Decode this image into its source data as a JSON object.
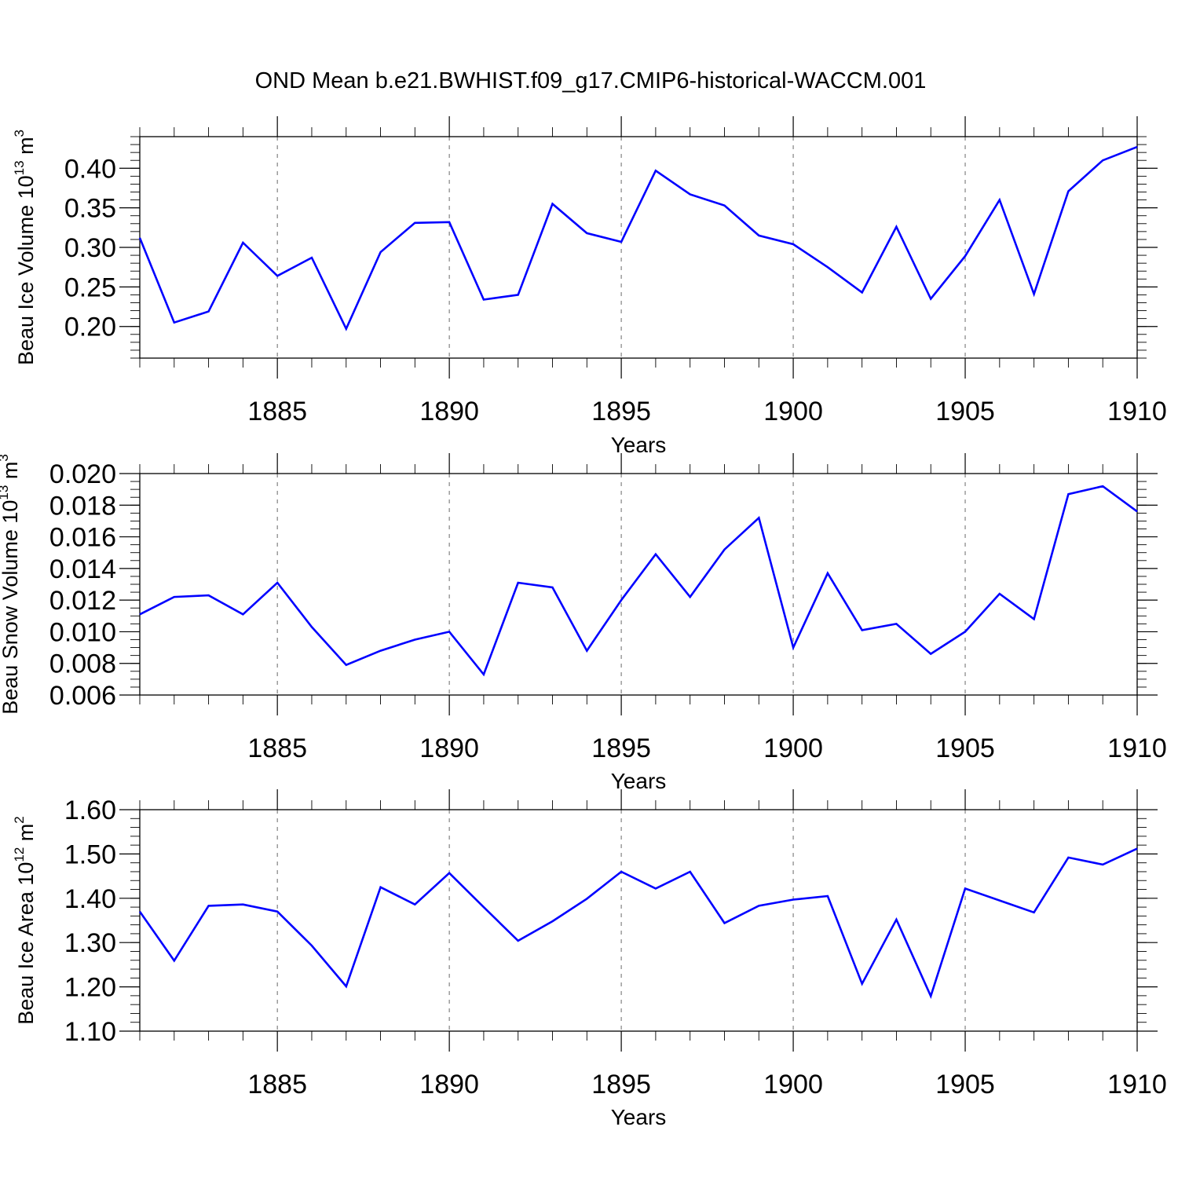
{
  "chart_data": {
    "title": "OND Mean b.e21.BWHIST.f09_g17.CMIP6-historical-WACCM.001",
    "panels": [
      {
        "type": "line",
        "ylabel": {
          "base": "Beau Ice Volume 10",
          "exp": "13",
          "unit": " m",
          "unit_exp": "3"
        },
        "xlabel": "Years",
        "xlim": [
          1881,
          1910
        ],
        "x_ticks": [
          1885,
          1890,
          1895,
          1900,
          1905,
          1910
        ],
        "ylim": [
          0.16,
          0.44
        ],
        "y_ticks": [
          0.2,
          0.25,
          0.3,
          0.35,
          0.4
        ],
        "y_tick_labels": [
          "0.20",
          "0.25",
          "0.30",
          "0.35",
          "0.40"
        ],
        "y_minor_step": 0.01,
        "vertical_grid": "dashed at major x ticks",
        "color": "#0000ff",
        "x": [
          1881,
          1882,
          1883,
          1884,
          1885,
          1886,
          1887,
          1888,
          1889,
          1890,
          1891,
          1892,
          1893,
          1894,
          1895,
          1896,
          1897,
          1898,
          1899,
          1900,
          1901,
          1902,
          1903,
          1904,
          1905,
          1906,
          1907,
          1908,
          1909,
          1910
        ],
        "y": [
          0.312,
          0.205,
          0.219,
          0.306,
          0.264,
          0.287,
          0.197,
          0.294,
          0.331,
          0.332,
          0.234,
          0.24,
          0.355,
          0.318,
          0.307,
          0.397,
          0.367,
          0.353,
          0.315,
          0.304,
          0.275,
          0.243,
          0.326,
          0.235,
          0.289,
          0.36,
          0.241,
          0.371,
          0.41,
          0.427
        ]
      },
      {
        "type": "line",
        "ylabel": {
          "base": "Beau Snow Volume 10",
          "exp": "13",
          "unit": " m",
          "unit_exp": "3"
        },
        "xlabel": "Years",
        "xlim": [
          1881,
          1910
        ],
        "x_ticks": [
          1885,
          1890,
          1895,
          1900,
          1905,
          1910
        ],
        "ylim": [
          0.006,
          0.02
        ],
        "y_ticks": [
          0.006,
          0.008,
          0.01,
          0.012,
          0.014,
          0.016,
          0.018,
          0.02
        ],
        "y_tick_labels": [
          "0.006",
          "0.008",
          "0.010",
          "0.012",
          "0.014",
          "0.016",
          "0.018",
          "0.020"
        ],
        "y_minor_step": 0.0005,
        "vertical_grid": "dashed at major x ticks",
        "color": "#0000ff",
        "x": [
          1881,
          1882,
          1883,
          1884,
          1885,
          1886,
          1887,
          1888,
          1889,
          1890,
          1891,
          1892,
          1893,
          1894,
          1895,
          1896,
          1897,
          1898,
          1899,
          1900,
          1901,
          1902,
          1903,
          1904,
          1905,
          1906,
          1907,
          1908,
          1909,
          1910
        ],
        "y": [
          0.0111,
          0.0122,
          0.0123,
          0.0111,
          0.0131,
          0.0103,
          0.0079,
          0.0088,
          0.0095,
          0.01,
          0.0073,
          0.0131,
          0.0128,
          0.0088,
          0.012,
          0.0149,
          0.0122,
          0.0152,
          0.0172,
          0.009,
          0.0137,
          0.0101,
          0.0105,
          0.0086,
          0.01,
          0.0124,
          0.0108,
          0.0187,
          0.0192,
          0.0176
        ]
      },
      {
        "type": "line",
        "ylabel": {
          "base": "Beau Ice Area 10",
          "exp": "12",
          "unit": " m",
          "unit_exp": "2"
        },
        "xlabel": "Years",
        "xlim": [
          1881,
          1910
        ],
        "x_ticks": [
          1885,
          1890,
          1895,
          1900,
          1905,
          1910
        ],
        "ylim": [
          1.1,
          1.6
        ],
        "y_ticks": [
          1.1,
          1.2,
          1.3,
          1.4,
          1.5,
          1.6
        ],
        "y_tick_labels": [
          "1.10",
          "1.20",
          "1.30",
          "1.40",
          "1.50",
          "1.60"
        ],
        "y_minor_step": 0.02,
        "vertical_grid": "dashed at major x ticks",
        "color": "#0000ff",
        "x": [
          1881,
          1882,
          1883,
          1884,
          1885,
          1886,
          1887,
          1888,
          1889,
          1890,
          1891,
          1892,
          1893,
          1894,
          1895,
          1896,
          1897,
          1898,
          1899,
          1900,
          1901,
          1902,
          1903,
          1904,
          1905,
          1906,
          1907,
          1908,
          1909,
          1910
        ],
        "y": [
          1.37,
          1.259,
          1.383,
          1.386,
          1.37,
          1.293,
          1.201,
          1.425,
          1.386,
          1.457,
          1.38,
          1.304,
          1.348,
          1.399,
          1.46,
          1.422,
          1.46,
          1.344,
          1.383,
          1.397,
          1.405,
          1.207,
          1.352,
          1.179,
          1.422,
          1.395,
          1.368,
          1.492,
          1.476,
          1.512
        ]
      }
    ]
  }
}
